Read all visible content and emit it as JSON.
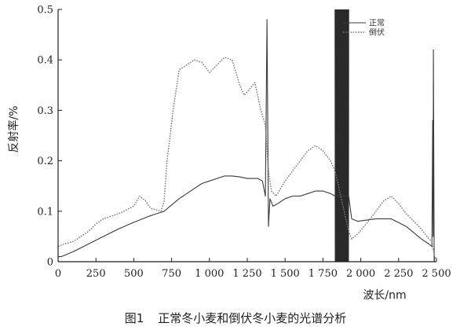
{
  "chart_data": {
    "type": "line",
    "title": "",
    "xlabel": "波长/nm",
    "ylabel": "反射率/%",
    "xlim": [
      0,
      2500
    ],
    "ylim": [
      0,
      0.5
    ],
    "x_ticks": [
      0,
      250,
      500,
      750,
      1000,
      1250,
      1500,
      1750,
      2000,
      2250,
      2500
    ],
    "x_tick_labels": [
      "0",
      "250",
      "500",
      "750",
      "1 000",
      "1 250",
      "1 500",
      "1 750",
      "2 000",
      "2 250",
      "2 500"
    ],
    "y_ticks": [
      0,
      0.1,
      0.2,
      0.3,
      0.4,
      0.5
    ],
    "y_tick_labels": [
      "0",
      "0.1",
      "0.2",
      "0.3",
      "0.4",
      "0.5"
    ],
    "grid": false,
    "legend_position": "top-right",
    "series": [
      {
        "name": "正常",
        "style": "solid",
        "color": "#3a3a3a",
        "x": [
          0,
          20,
          100,
          200,
          300,
          400,
          500,
          600,
          650,
          700,
          800,
          900,
          950,
          1000,
          1050,
          1100,
          1150,
          1200,
          1250,
          1280,
          1320,
          1350,
          1370,
          1380,
          1390,
          1400,
          1420,
          1450,
          1500,
          1550,
          1600,
          1650,
          1700,
          1750,
          1800,
          1830,
          1920,
          1940,
          1980,
          2100,
          2200,
          2300,
          2400,
          2450,
          2470,
          2475,
          2478,
          2480,
          2485,
          2490
        ],
        "y": [
          0.01,
          0.01,
          0.02,
          0.035,
          0.05,
          0.065,
          0.078,
          0.09,
          0.095,
          0.1,
          0.125,
          0.145,
          0.155,
          0.16,
          0.165,
          0.17,
          0.17,
          0.168,
          0.165,
          0.165,
          0.165,
          0.16,
          0.13,
          0.48,
          0.07,
          0.125,
          0.11,
          0.115,
          0.125,
          0.13,
          0.13,
          0.135,
          0.14,
          0.14,
          0.135,
          0.13,
          0.13,
          0.085,
          0.08,
          0.085,
          0.085,
          0.07,
          0.045,
          0.035,
          0.03,
          0.28,
          0.05,
          0.42,
          0.0,
          0.01
        ]
      },
      {
        "name": "倒伏",
        "style": "dotted",
        "color": "#777777",
        "x": [
          0,
          40,
          100,
          200,
          250,
          300,
          350,
          400,
          500,
          540,
          560,
          580,
          600,
          620,
          680,
          700,
          720,
          740,
          760,
          800,
          850,
          900,
          950,
          1000,
          1050,
          1100,
          1150,
          1200,
          1230,
          1260,
          1300,
          1340,
          1370,
          1390,
          1410,
          1440,
          1500,
          1550,
          1600,
          1650,
          1700,
          1750,
          1800,
          1830,
          1920,
          1940,
          1980,
          2050,
          2100,
          2150,
          2200,
          2250,
          2300,
          2350,
          2400,
          2450,
          2470,
          2480
        ],
        "y": [
          0.03,
          0.035,
          0.04,
          0.06,
          0.075,
          0.085,
          0.09,
          0.095,
          0.11,
          0.13,
          0.125,
          0.12,
          0.11,
          0.105,
          0.1,
          0.12,
          0.2,
          0.25,
          0.3,
          0.38,
          0.39,
          0.4,
          0.395,
          0.375,
          0.39,
          0.405,
          0.4,
          0.35,
          0.33,
          0.34,
          0.355,
          0.3,
          0.27,
          0.18,
          0.14,
          0.13,
          0.16,
          0.18,
          0.2,
          0.22,
          0.23,
          0.22,
          0.2,
          0.18,
          0.06,
          0.045,
          0.055,
          0.08,
          0.1,
          0.12,
          0.13,
          0.115,
          0.095,
          0.08,
          0.065,
          0.045,
          0.04,
          0.02
        ]
      }
    ],
    "caption_number": "图1",
    "caption_text": "正常冬小麦和倒伏冬小麦的光谱分析"
  }
}
